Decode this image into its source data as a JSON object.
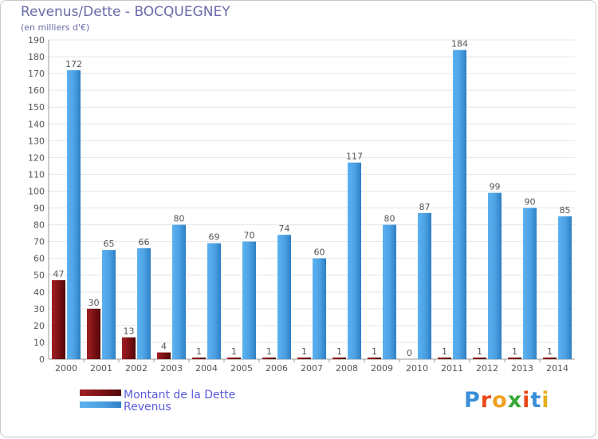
{
  "header": {
    "title": "Revenus/Dette - BOCQUEGNEY",
    "subtitle": "(en milliers d'€)"
  },
  "logo": {
    "text": "Proxiti"
  },
  "colors": {
    "dette": "#7a1014",
    "revenus": "#4ba0e0",
    "title": "#6a6aa8",
    "legend_text": "#5a5adc"
  },
  "chart_data": {
    "type": "bar",
    "title": "Revenus/Dette - BOCQUEGNEY",
    "subtitle": "(en milliers d'€)",
    "xlabel": "",
    "ylabel": "",
    "ylim": [
      0,
      190
    ],
    "ytick_step": 10,
    "grid": true,
    "legend_position": "bottom-left",
    "categories": [
      "2000",
      "2001",
      "2002",
      "2003",
      "2004",
      "2005",
      "2006",
      "2007",
      "2008",
      "2009",
      "2010",
      "2011",
      "2012",
      "2013",
      "2014"
    ],
    "series": [
      {
        "name": "Montant de la Dette",
        "color": "#7a1014",
        "values": [
          47,
          30,
          13,
          4,
          1,
          1,
          1,
          1,
          1,
          1,
          0,
          1,
          1,
          1,
          1
        ]
      },
      {
        "name": "Revenus",
        "color": "#4ba0e0",
        "values": [
          172,
          65,
          66,
          80,
          69,
          70,
          74,
          60,
          117,
          80,
          87,
          184,
          99,
          90,
          85
        ]
      }
    ]
  }
}
